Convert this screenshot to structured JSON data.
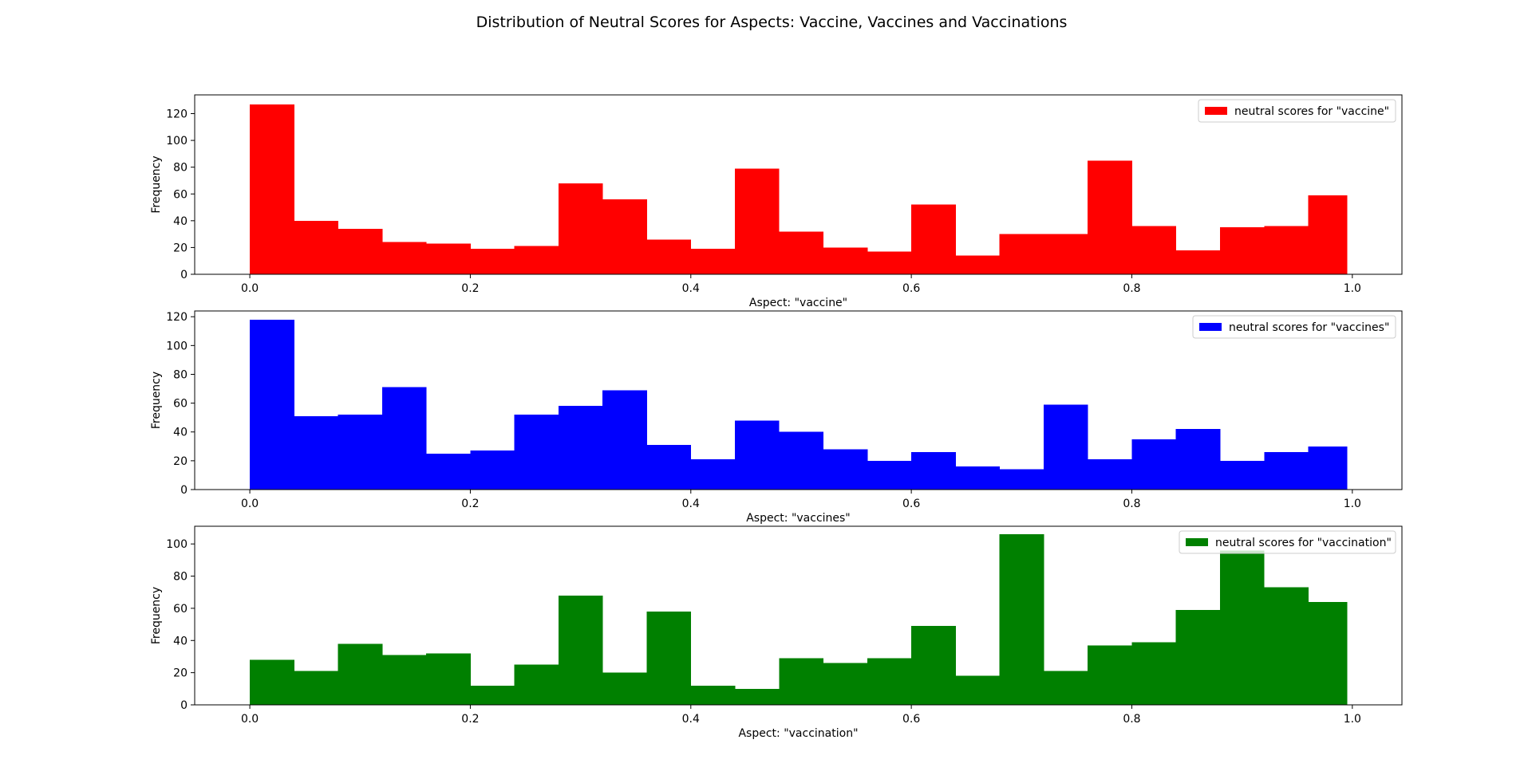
{
  "figure": {
    "suptitle": "Distribution of Neutral Scores for Aspects: Vaccine, Vaccines and Vaccinations"
  },
  "chart_data": [
    {
      "type": "bar",
      "subtype": "histogram",
      "color": "#ff0000",
      "legend": "neutral scores for \"vaccine\"",
      "legend_position": "upper right",
      "xlabel": "Aspect: \"vaccine\"",
      "ylabel": "Frequency",
      "bin_edges": [
        0.0,
        0.04,
        0.08,
        0.12,
        0.16,
        0.2,
        0.24,
        0.28,
        0.32,
        0.36,
        0.4,
        0.44,
        0.48,
        0.52,
        0.56,
        0.6,
        0.64,
        0.68,
        0.72,
        0.76,
        0.8,
        0.84,
        0.88,
        0.92,
        0.96,
        0.995
      ],
      "values": [
        127,
        40,
        34,
        24,
        23,
        19,
        21,
        68,
        56,
        26,
        19,
        79,
        32,
        20,
        17,
        52,
        14,
        30,
        30,
        85,
        36,
        18,
        35,
        36,
        59
      ],
      "xlim": [
        -0.05,
        1.045
      ],
      "ylim": [
        0,
        134
      ],
      "xticks": [
        0.0,
        0.2,
        0.4,
        0.6,
        0.8,
        1.0
      ],
      "xtick_labels": [
        "0.0",
        "0.2",
        "0.4",
        "0.6",
        "0.8",
        "1.0"
      ],
      "yticks": [
        0,
        20,
        40,
        60,
        80,
        100,
        120
      ],
      "ytick_labels": [
        "0",
        "20",
        "40",
        "60",
        "80",
        "100",
        "120"
      ]
    },
    {
      "type": "bar",
      "subtype": "histogram",
      "color": "#0000ff",
      "legend": "neutral scores for \"vaccines\"",
      "legend_position": "upper right",
      "xlabel": "Aspect: \"vaccines\"",
      "ylabel": "Frequency",
      "bin_edges": [
        0.0,
        0.04,
        0.08,
        0.12,
        0.16,
        0.2,
        0.24,
        0.28,
        0.32,
        0.36,
        0.4,
        0.44,
        0.48,
        0.52,
        0.56,
        0.6,
        0.64,
        0.68,
        0.72,
        0.76,
        0.8,
        0.84,
        0.88,
        0.92,
        0.96,
        0.995
      ],
      "values": [
        118,
        51,
        52,
        71,
        25,
        27,
        52,
        58,
        69,
        31,
        21,
        48,
        40,
        28,
        20,
        26,
        16,
        14,
        59,
        21,
        35,
        42,
        20,
        26,
        30
      ],
      "xlim": [
        -0.05,
        1.045
      ],
      "ylim": [
        0,
        124
      ],
      "xticks": [
        0.0,
        0.2,
        0.4,
        0.6,
        0.8,
        1.0
      ],
      "xtick_labels": [
        "0.0",
        "0.2",
        "0.4",
        "0.6",
        "0.8",
        "1.0"
      ],
      "yticks": [
        0,
        20,
        40,
        60,
        80,
        100,
        120
      ],
      "ytick_labels": [
        "0",
        "20",
        "40",
        "60",
        "80",
        "100",
        "120"
      ]
    },
    {
      "type": "bar",
      "subtype": "histogram",
      "color": "#008000",
      "legend": "neutral scores for \"vaccination\"",
      "legend_position": "upper right",
      "xlabel": "Aspect: \"vaccination\"",
      "ylabel": "Frequency",
      "bin_edges": [
        0.0,
        0.04,
        0.08,
        0.12,
        0.16,
        0.2,
        0.24,
        0.28,
        0.32,
        0.36,
        0.4,
        0.44,
        0.48,
        0.52,
        0.56,
        0.6,
        0.64,
        0.68,
        0.72,
        0.76,
        0.8,
        0.84,
        0.88,
        0.92,
        0.96,
        0.995
      ],
      "values": [
        28,
        21,
        38,
        31,
        32,
        12,
        25,
        68,
        20,
        58,
        12,
        10,
        29,
        26,
        29,
        49,
        18,
        106,
        21,
        37,
        39,
        59,
        96,
        73,
        64
      ],
      "xlim": [
        -0.05,
        1.045
      ],
      "ylim": [
        0,
        111
      ],
      "xticks": [
        0.0,
        0.2,
        0.4,
        0.6,
        0.8,
        1.0
      ],
      "xtick_labels": [
        "0.0",
        "0.2",
        "0.4",
        "0.6",
        "0.8",
        "1.0"
      ],
      "yticks": [
        0,
        20,
        40,
        60,
        80,
        100
      ],
      "ytick_labels": [
        "0",
        "20",
        "40",
        "60",
        "80",
        "100"
      ]
    }
  ]
}
